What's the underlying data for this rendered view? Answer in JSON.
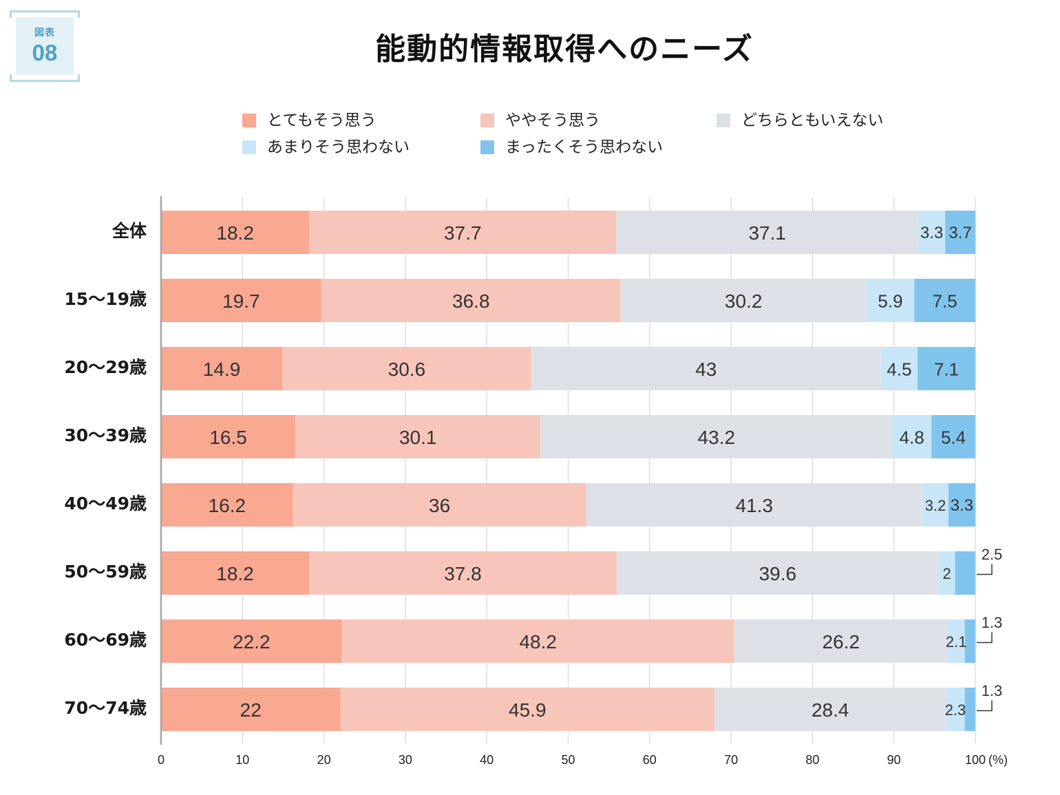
{
  "badge": {
    "label": "図表",
    "number": "08"
  },
  "chart_data": {
    "type": "bar",
    "orientation": "horizontal",
    "stacked": true,
    "title": "能動的情報取得へのニーズ",
    "categories": [
      "全体",
      "15〜19歳",
      "20〜29歳",
      "30〜39歳",
      "40〜49歳",
      "50〜59歳",
      "60〜69歳",
      "70〜74歳"
    ],
    "series": [
      {
        "name": "とてもそう思う",
        "color": "#f9a892",
        "values": [
          18.2,
          19.7,
          14.9,
          16.5,
          16.2,
          18.2,
          22.2,
          22
        ]
      },
      {
        "name": "ややそう思う",
        "color": "#f8c5bb",
        "values": [
          37.7,
          36.8,
          30.6,
          30.1,
          36,
          37.8,
          48.2,
          45.9
        ]
      },
      {
        "name": "どちらともいえない",
        "color": "#dde1e7",
        "values": [
          37.1,
          30.2,
          43,
          43.2,
          41.3,
          39.6,
          26.2,
          28.4
        ]
      },
      {
        "name": "あまりそう思わない",
        "color": "#c8e6f8",
        "values": [
          3.3,
          5.9,
          4.5,
          4.8,
          3.2,
          2,
          2.1,
          2.3
        ]
      },
      {
        "name": "まったくそう思わない",
        "color": "#80c4ee",
        "values": [
          3.7,
          7.5,
          7.1,
          5.4,
          3.3,
          2.5,
          1.3,
          1.3
        ]
      }
    ],
    "xlim": [
      0,
      100
    ],
    "xticks": [
      0,
      10,
      20,
      30,
      40,
      50,
      60,
      70,
      80,
      90,
      100
    ],
    "xlabel": "(%)",
    "grid": true,
    "legend_position": "top"
  }
}
